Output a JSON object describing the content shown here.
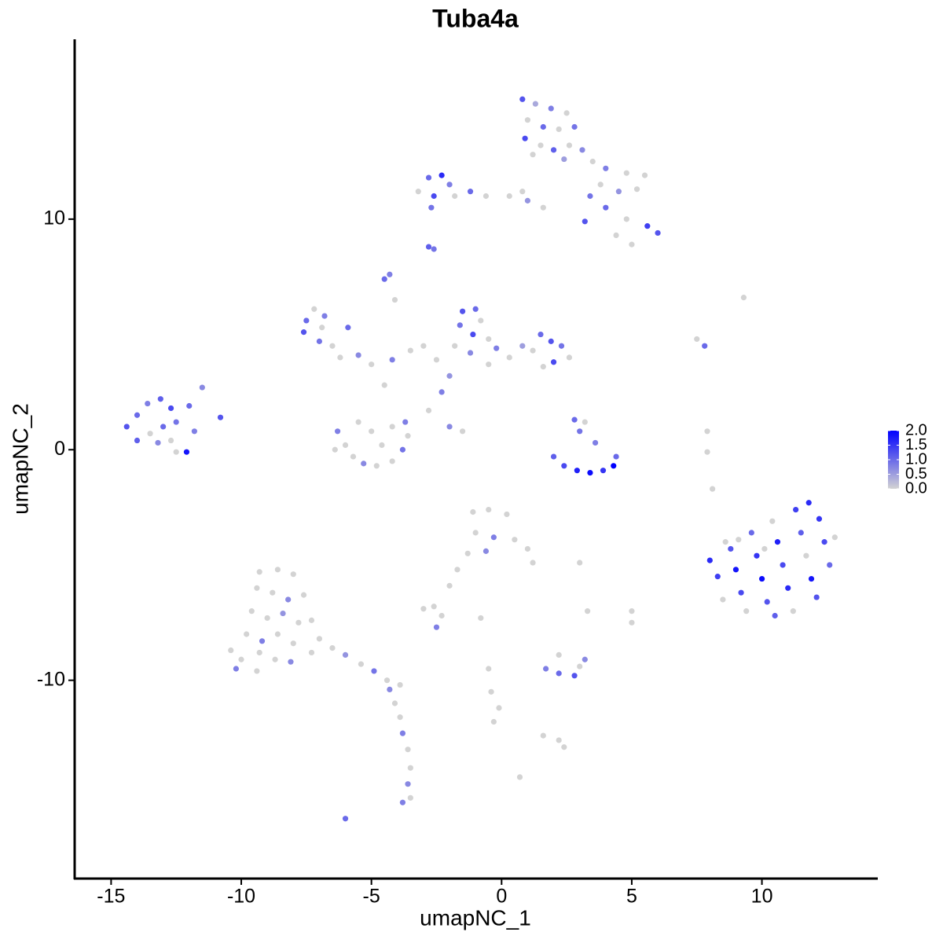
{
  "chart_data": {
    "type": "scatter",
    "title": "Tuba4a",
    "x_label": "umapNC_1",
    "y_label": "umapNC_2",
    "xlim": [
      -16.4,
      14.45
    ],
    "ylim": [
      -18.6,
      17.8
    ],
    "xticks": [
      -15,
      -10,
      -5,
      0,
      5,
      10
    ],
    "yticks": [
      -10,
      0,
      10
    ],
    "colorbar": {
      "colors": [
        "#d3d3d3",
        "#0000ff"
      ],
      "ticks": [
        {
          "value": 0,
          "label": "0.0"
        },
        {
          "value": 0.5,
          "label": "0.5"
        },
        {
          "value": 1,
          "label": "1.0"
        },
        {
          "value": 1.5,
          "label": "1.5"
        },
        {
          "value": 2,
          "label": "2.0"
        }
      ]
    },
    "x": [
      0.8,
      1.3,
      1.9,
      2.5,
      1.0,
      1.6,
      2.2,
      2.8,
      0.9,
      1.5,
      2.0,
      2.6,
      3.1,
      1.2,
      2.4,
      3.5,
      4.0,
      4.8,
      5.5,
      3.8,
      4.5,
      5.2,
      3.4,
      4.0,
      4.8,
      5.6,
      6.0,
      5.0,
      4.4,
      -3.2,
      -2.8,
      -2.3,
      -2.0,
      -2.6,
      -1.8,
      -1.2,
      -0.6,
      0.3,
      0.8,
      1.0,
      -2.7,
      1.6,
      3.2,
      -2.8,
      -2.6,
      -4.5,
      -4.3,
      -4.1,
      -7.5,
      -7.2,
      -6.8,
      -7.6,
      -7.0,
      -6.5,
      -6.9,
      -6.2,
      -5.5,
      -5.0,
      -4.2,
      -3.5,
      -5.9,
      -1.5,
      -1.0,
      -0.8,
      -1.6,
      -1.1,
      -0.5,
      -1.8,
      -1.2,
      -0.2,
      0.3,
      0.8,
      1.2,
      1.5,
      1.9,
      2.3,
      2.6,
      2.0,
      1.6,
      -0.5,
      -2.0,
      -2.5,
      -3.0,
      -2.3,
      -2.8,
      -2.0,
      -1.5,
      -4.5,
      -6.3,
      -6.0,
      -5.7,
      -5.3,
      -4.8,
      -4.2,
      -3.8,
      -3.6,
      -4.6,
      -5.0,
      -5.5,
      -4.2,
      -3.7,
      -6.4,
      -14.4,
      -14.0,
      -13.6,
      -13.1,
      -12.7,
      -12.5,
      -13.0,
      -13.5,
      -14.0,
      -13.2,
      -12.7,
      -12.1,
      -11.8,
      -11.5,
      -10.8,
      -12.0,
      -12.5,
      2.0,
      2.4,
      2.9,
      3.4,
      3.9,
      4.3,
      4.4,
      3.0,
      3.2,
      3.6,
      2.8,
      8.0,
      8.3,
      8.5,
      8.8,
      9.0,
      9.2,
      9.4,
      9.6,
      9.8,
      10.0,
      10.2,
      10.4,
      10.6,
      10.8,
      11.0,
      11.2,
      11.3,
      11.5,
      11.7,
      11.9,
      12.1,
      12.2,
      12.4,
      12.6,
      12.8,
      10.5,
      9.1,
      11.8,
      10.1,
      8.6,
      7.9,
      7.9,
      8.1,
      9.3,
      7.5,
      7.8,
      -1.1,
      -0.5,
      0.2,
      -1.0,
      -0.3,
      0.5,
      1.0,
      1.2,
      -1.3,
      -0.6,
      -1.7,
      -2.0,
      3.0,
      -2.6,
      -3.0,
      -2.3,
      -2.5,
      -0.8,
      5.0,
      5.0,
      3.3,
      1.7,
      2.2,
      2.8,
      3.0,
      2.2,
      3.2,
      2.2,
      2.4,
      1.6,
      -0.5,
      -0.4,
      -0.1,
      -0.3,
      0.7,
      -6.0,
      -9.3,
      -8.6,
      -8.0,
      -9.4,
      -8.8,
      -8.2,
      -7.6,
      -9.6,
      -9.0,
      -8.4,
      -7.8,
      -7.3,
      -9.8,
      -9.2,
      -8.6,
      -8.0,
      -10.4,
      -10.0,
      -9.4,
      -8.7,
      -8.1,
      -7.3,
      -10.2,
      -9.3,
      -7.0,
      -6.5,
      -6.0,
      -5.4,
      -4.9,
      -4.4,
      -3.9,
      -4.3,
      -4.1,
      -3.9,
      -3.8,
      -3.6,
      -3.5,
      -3.6,
      -3.5,
      -3.8
    ],
    "y": [
      15.2,
      15.0,
      14.8,
      14.6,
      14.3,
      14.0,
      13.9,
      14.0,
      13.5,
      13.2,
      13.0,
      13.2,
      13.0,
      12.8,
      12.6,
      12.5,
      12.2,
      12.0,
      11.9,
      11.5,
      11.2,
      11.3,
      11.0,
      10.5,
      10.0,
      9.7,
      9.4,
      8.9,
      9.3,
      11.2,
      11.8,
      11.9,
      11.5,
      11.0,
      11.0,
      11.2,
      11.0,
      11.0,
      11.2,
      10.8,
      10.5,
      10.5,
      9.9,
      8.8,
      8.7,
      7.4,
      7.6,
      6.5,
      5.6,
      6.1,
      5.8,
      5.1,
      4.7,
      4.5,
      5.3,
      4.0,
      4.1,
      3.7,
      3.9,
      4.3,
      5.3,
      6.0,
      6.1,
      5.6,
      5.4,
      5.0,
      4.8,
      4.5,
      4.2,
      4.4,
      4.0,
      4.5,
      4.3,
      5.0,
      4.7,
      4.5,
      4.0,
      3.8,
      3.6,
      3.7,
      3.2,
      3.9,
      4.5,
      2.5,
      1.7,
      1.0,
      0.8,
      2.8,
      0.8,
      0.2,
      -0.3,
      -0.6,
      -0.7,
      -0.5,
      0.0,
      0.6,
      0.2,
      0.8,
      1.2,
      1.0,
      1.2,
      0.0,
      1.0,
      1.5,
      2.0,
      2.2,
      1.8,
      1.2,
      1.0,
      0.7,
      0.4,
      0.3,
      0.4,
      -0.1,
      0.8,
      2.7,
      1.4,
      1.9,
      -0.1,
      -0.3,
      -0.7,
      -0.9,
      -1.0,
      -0.9,
      -0.7,
      -0.3,
      0.8,
      1.2,
      0.3,
      1.3,
      -4.8,
      -5.5,
      -6.5,
      -4.3,
      -5.2,
      -6.2,
      -7.0,
      -3.6,
      -4.6,
      -5.6,
      -6.6,
      -3.1,
      -4.0,
      -5.0,
      -6.0,
      -7.0,
      -2.6,
      -3.6,
      -4.6,
      -5.6,
      -6.4,
      -3.0,
      -4.0,
      -5.0,
      -3.8,
      -7.2,
      -3.9,
      -2.3,
      -4.3,
      -4.0,
      -0.1,
      0.8,
      -1.7,
      6.6,
      4.8,
      4.5,
      -2.7,
      -2.6,
      -2.8,
      -3.6,
      -3.8,
      -3.9,
      -4.3,
      -4.9,
      -4.5,
      -4.4,
      -5.2,
      -5.9,
      -4.9,
      -6.8,
      -6.9,
      -7.2,
      -7.7,
      -7.3,
      -7.0,
      -7.5,
      -7.0,
      -9.5,
      -9.7,
      -9.8,
      -9.4,
      -8.9,
      -9.1,
      -12.6,
      -12.9,
      -12.4,
      -9.5,
      -10.5,
      -11.2,
      -11.8,
      -14.2,
      -16.0,
      -5.3,
      -5.2,
      -5.4,
      -6.0,
      -6.2,
      -6.5,
      -6.3,
      -7.0,
      -7.3,
      -7.1,
      -7.5,
      -7.4,
      -8.0,
      -8.3,
      -8.0,
      -8.4,
      -8.7,
      -9.1,
      -9.6,
      -9.1,
      -9.2,
      -8.8,
      -9.5,
      -8.8,
      -8.2,
      -8.6,
      -8.9,
      -9.3,
      -9.6,
      -10.0,
      -10.2,
      -10.4,
      -11.0,
      -11.6,
      -12.3,
      -13.0,
      -13.8,
      -14.5,
      -15.1,
      -15.3
    ],
    "values": [
      1.2,
      0.4,
      0.8,
      0,
      0,
      1.0,
      0,
      0.9,
      1.3,
      0,
      1.1,
      0,
      0.7,
      0,
      0.5,
      0,
      0.8,
      0,
      0,
      0,
      0.6,
      0,
      0.9,
      1.0,
      0,
      1.4,
      1.2,
      0,
      0,
      0,
      1.0,
      1.6,
      0.8,
      1.3,
      0,
      1.0,
      0,
      0,
      0,
      0.6,
      0.9,
      0,
      1.2,
      1.1,
      0.9,
      1.0,
      0.8,
      0,
      1.0,
      0,
      0.8,
      1.2,
      0.9,
      0,
      0,
      0,
      0.7,
      0,
      0.8,
      0,
      1.0,
      1.2,
      1.0,
      0,
      0.9,
      1.3,
      0,
      0,
      0.7,
      0.8,
      0,
      0.5,
      0,
      1.0,
      1.2,
      0.9,
      0,
      1.3,
      0,
      0,
      0.6,
      0,
      0,
      0.8,
      0,
      0.7,
      0,
      0,
      0.8,
      0,
      0,
      0.7,
      0,
      0,
      0.9,
      0,
      0,
      0,
      0,
      0,
      0.8,
      0,
      1.2,
      1.0,
      0.8,
      1.1,
      1.3,
      0.9,
      1.0,
      0,
      1.1,
      0.7,
      0,
      1.8,
      0.8,
      0.7,
      1.2,
      1.0,
      0,
      1.1,
      1.3,
      1.7,
      1.9,
      1.5,
      2.0,
      1.0,
      0.9,
      0,
      0.8,
      1.0,
      1.6,
      1.4,
      0,
      1.2,
      1.8,
      1.3,
      0,
      1.0,
      1.5,
      1.9,
      1.2,
      0,
      1.7,
      1.3,
      1.6,
      0,
      1.4,
      1.1,
      0,
      1.8,
      1.2,
      1.5,
      1.3,
      1.0,
      0,
      1.1,
      0,
      1.6,
      0,
      0,
      0,
      0,
      0,
      0,
      0,
      1.0,
      0,
      0,
      0,
      0,
      0.8,
      0,
      0,
      0,
      0,
      0.7,
      0,
      0,
      0,
      0,
      0,
      0,
      0.8,
      0,
      0,
      0,
      0,
      0.8,
      1.0,
      1.2,
      0,
      0,
      0.7,
      0,
      0,
      0,
      0,
      0,
      0,
      0,
      0,
      1.0,
      0,
      0,
      0,
      0,
      0,
      0.7,
      0,
      0,
      0,
      0.6,
      0,
      0,
      0,
      0.8,
      0,
      0,
      0,
      0,
      0,
      0,
      0.7,
      0,
      0.8,
      0,
      0,
      0,
      0.6,
      0,
      0.9,
      0,
      0,
      0.7,
      0,
      0,
      0.8,
      0,
      0,
      0.7,
      0,
      0.8
    ]
  }
}
